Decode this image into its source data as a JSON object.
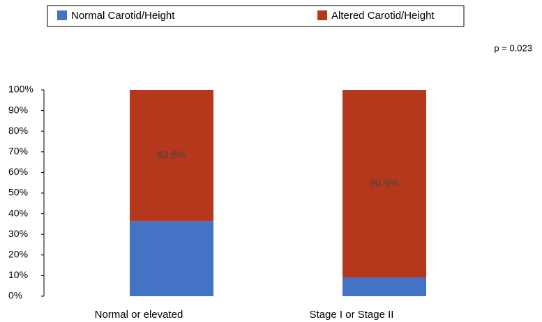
{
  "chart_data": {
    "type": "stacked_bar",
    "categories": [
      "Normal or elevated",
      "Stage I or Stage II"
    ],
    "series": [
      {
        "name": "Normal Carotid/Height",
        "color": "#4472c4",
        "values": [
          36.4,
          9.1
        ]
      },
      {
        "name": "Altered Carotid/Height",
        "color": "#b5381c",
        "values": [
          63.6,
          90.9
        ],
        "value_labels": [
          "63.6%",
          "90.9%"
        ]
      }
    ],
    "annotation": "p = 0.023",
    "ylim": [
      0,
      100
    ],
    "yticks": [
      {
        "value": 0,
        "label": "0%"
      },
      {
        "value": 10,
        "label": "10%"
      },
      {
        "value": 20,
        "label": "20%"
      },
      {
        "value": 30,
        "label": "30%"
      },
      {
        "value": 40,
        "label": "40%"
      },
      {
        "value": 50,
        "label": "50%"
      },
      {
        "value": 60,
        "label": "60%"
      },
      {
        "value": 70,
        "label": "70%"
      },
      {
        "value": 80,
        "label": "80%"
      },
      {
        "value": 90,
        "label": "90%"
      },
      {
        "value": 100,
        "label": "100%"
      }
    ]
  }
}
